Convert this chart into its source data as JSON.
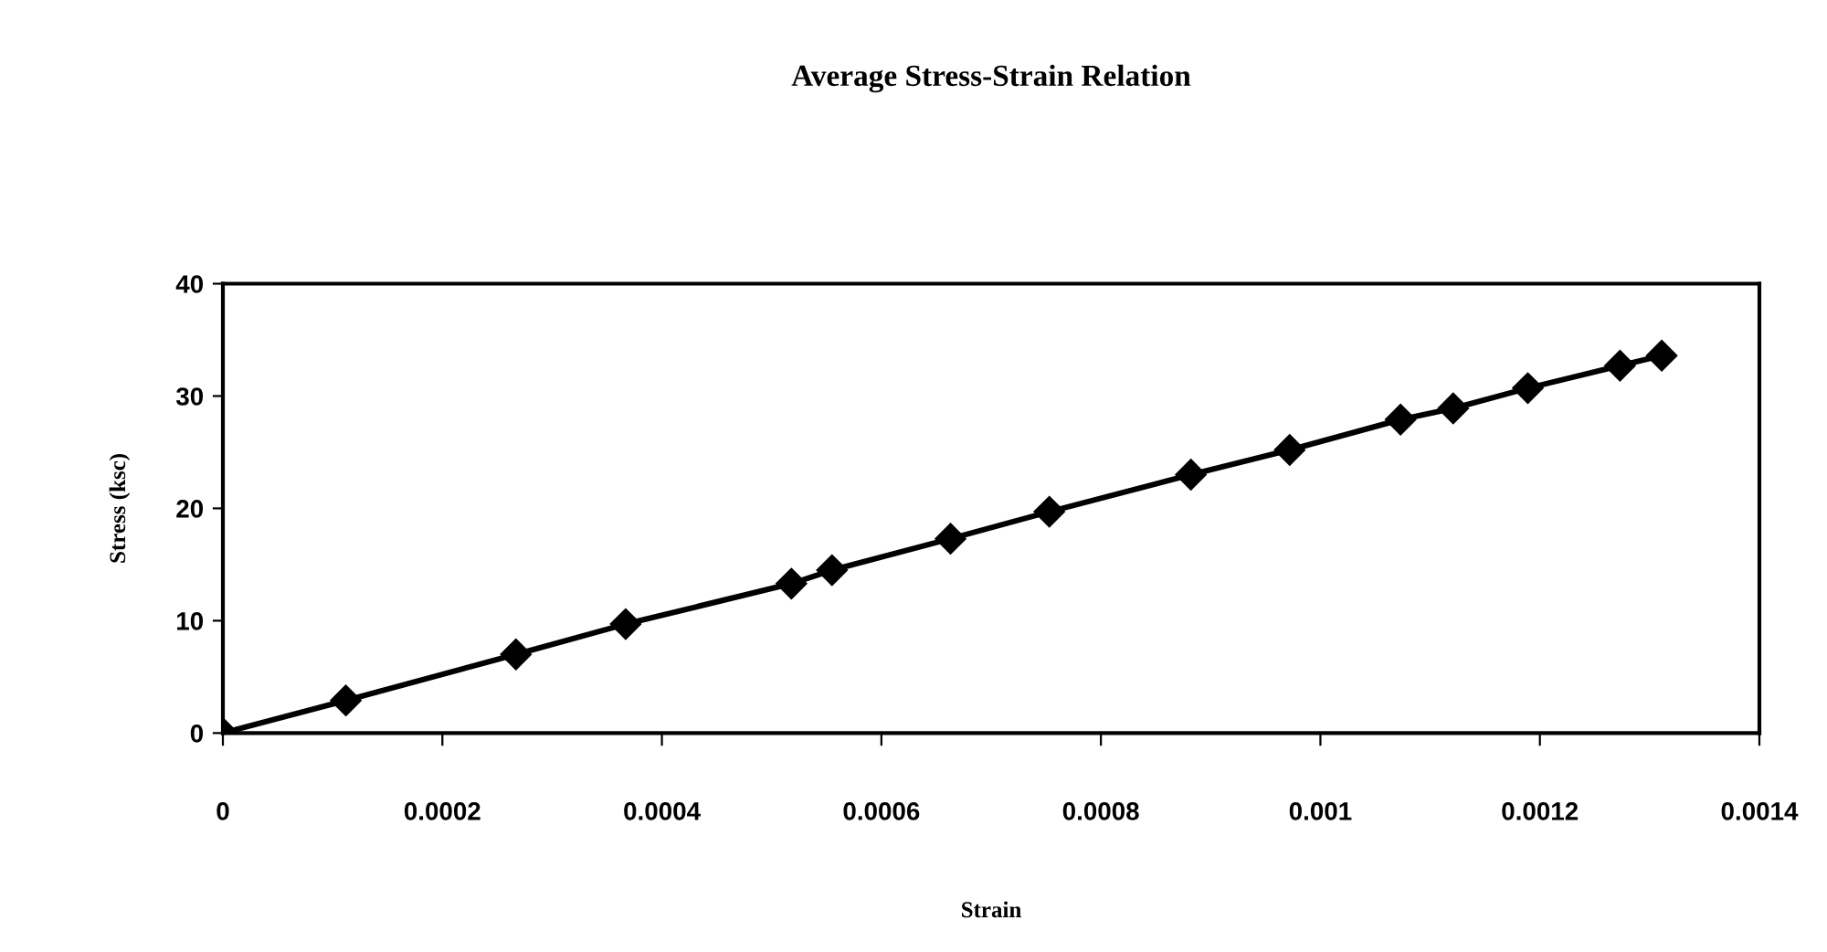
{
  "chart_data": {
    "type": "line",
    "title": "Average Stress-Strain Relation",
    "xlabel": "Strain",
    "ylabel": "Stress (ksc)",
    "x": [
      0,
      0.000112,
      0.000267,
      0.000367,
      0.000518,
      0.000555,
      0.000663,
      0.000753,
      0.000882,
      0.000972,
      0.001073,
      0.001121,
      0.001189,
      0.001273,
      0.001311
    ],
    "series": [
      {
        "color": "#000000",
        "values": [
          0,
          2.9,
          7.0,
          9.7,
          13.3,
          14.5,
          17.3,
          19.7,
          23.0,
          25.2,
          27.9,
          28.9,
          30.7,
          32.7,
          33.6
        ]
      }
    ],
    "xlim": [
      0,
      0.0014
    ],
    "xticks": [
      0,
      0.0002,
      0.0004,
      0.0006,
      0.0008,
      0.001,
      0.0012,
      0.0014
    ],
    "ylim": [
      0,
      40
    ],
    "yticks": [
      0,
      10,
      20,
      30,
      40
    ],
    "grid": false,
    "legend": false,
    "marker": "diamond",
    "line_style": "solid"
  }
}
